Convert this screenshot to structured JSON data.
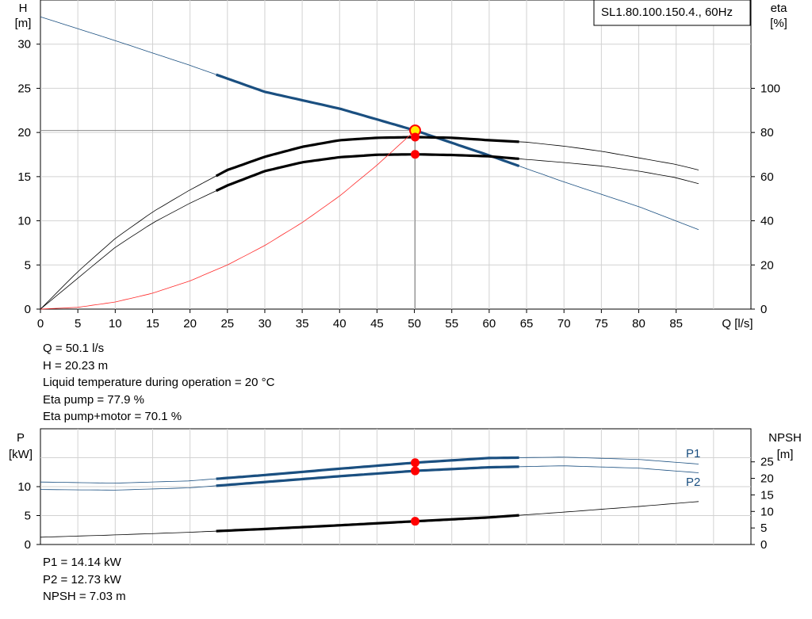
{
  "chart_data": [
    {
      "type": "line",
      "title": "SL1.80.100.150.4., 60Hz",
      "xlabel": "Q [l/s]",
      "ylabel_left": [
        "H",
        "[m]"
      ],
      "ylabel_right": [
        "eta",
        "[%]"
      ],
      "xlim": [
        0,
        95
      ],
      "ylim_left": [
        0,
        35
      ],
      "ylim_right": [
        0,
        140
      ],
      "x_ticks": [
        0,
        5,
        10,
        15,
        20,
        25,
        30,
        35,
        40,
        45,
        50,
        55,
        60,
        65,
        70,
        75,
        80,
        85
      ],
      "y_ticks_left": [
        0,
        5,
        10,
        15,
        20,
        25,
        30
      ],
      "y_ticks_right": [
        0,
        20,
        40,
        60,
        80,
        100
      ],
      "grid": true,
      "colors": {
        "head": "#1a4f80",
        "efficiency": "#000000",
        "system": "#ff2a2a",
        "duty_point": "#ff0000",
        "duty_highlight": "#ffee00"
      },
      "series": [
        {
          "key": "head",
          "axis": "left",
          "style": "thin-and-bold",
          "bold_range": [
            23.5,
            64
          ],
          "x": [
            0,
            10,
            20,
            30,
            40,
            50.1,
            60,
            70,
            80,
            88
          ],
          "y": [
            33.1,
            30.4,
            27.6,
            24.6,
            22.7,
            20.23,
            17.4,
            14.4,
            11.6,
            9.0
          ]
        },
        {
          "key": "eta_pump",
          "axis": "right",
          "style": "thin-and-bold",
          "bold_range": [
            23.5,
            64
          ],
          "x": [
            0,
            5,
            10,
            15,
            20,
            25,
            30,
            35,
            40,
            45,
            50.1,
            55,
            60,
            65,
            70,
            75,
            80,
            85,
            88
          ],
          "y": [
            0,
            17,
            32,
            44,
            54,
            63,
            69,
            73.5,
            76.5,
            77.6,
            77.9,
            77.6,
            76.5,
            75.6,
            73.8,
            71.5,
            68.5,
            65.5,
            63.0
          ]
        },
        {
          "key": "eta_pump_motor",
          "axis": "right",
          "style": "thin-and-bold",
          "bold_range": [
            23.5,
            64
          ],
          "x": [
            0,
            5,
            10,
            15,
            20,
            25,
            30,
            35,
            40,
            45,
            50.1,
            55,
            60,
            65,
            70,
            75,
            80,
            85,
            88
          ],
          "y": [
            0,
            14,
            28,
            39,
            48,
            56,
            62.5,
            66.5,
            68.8,
            69.9,
            70.1,
            69.8,
            69.2,
            67.8,
            66.4,
            64.8,
            62.5,
            59.5,
            56.8
          ]
        },
        {
          "key": "system",
          "axis": "left",
          "style": "thin",
          "x": [
            0,
            5,
            10,
            15,
            20,
            25,
            30,
            35,
            40,
            45,
            50.1
          ],
          "y": [
            0,
            0.2,
            0.8,
            1.8,
            3.2,
            5.0,
            7.2,
            9.8,
            12.8,
            16.3,
            20.23
          ]
        }
      ],
      "duty_point": {
        "q": 50.1,
        "h": 20.23,
        "eta_pump": 77.9,
        "eta_pump_motor": 70.1
      }
    },
    {
      "type": "line",
      "xlim": [
        0,
        95
      ],
      "ylabel_left": [
        "P",
        "[kW]"
      ],
      "ylabel_right": [
        "NPSH",
        "[m]"
      ],
      "ylim_left": [
        0,
        20
      ],
      "ylim_right": [
        0,
        35
      ],
      "y_ticks_left": [
        0,
        5,
        10
      ],
      "y_ticks_right": [
        0,
        5,
        10,
        15,
        20,
        25
      ],
      "grid": true,
      "colors": {
        "power": "#1a4f80",
        "npsh": "#000000",
        "duty_point": "#ff0000"
      },
      "series": [
        {
          "name": "P1",
          "key": "p1",
          "axis": "left",
          "style": "thin-and-bold",
          "bold_range": [
            23.5,
            64
          ],
          "x": [
            0,
            10,
            20,
            30,
            40,
            50.1,
            60,
            70,
            80,
            88
          ],
          "y": [
            10.8,
            10.6,
            11.0,
            12.0,
            13.1,
            14.14,
            14.95,
            15.1,
            14.7,
            13.9
          ]
        },
        {
          "name": "P2",
          "key": "p2",
          "axis": "left",
          "style": "thin-and-bold",
          "bold_range": [
            23.5,
            64
          ],
          "x": [
            0,
            10,
            20,
            30,
            40,
            50.1,
            60,
            70,
            80,
            88
          ],
          "y": [
            9.5,
            9.4,
            9.8,
            10.8,
            11.8,
            12.73,
            13.35,
            13.6,
            13.2,
            12.4
          ]
        },
        {
          "key": "npsh",
          "axis": "right",
          "style": "thin-and-bold",
          "bold_range": [
            23.5,
            64
          ],
          "x": [
            0,
            10,
            20,
            30,
            40,
            50.1,
            60,
            70,
            80,
            88
          ],
          "y": [
            2.2,
            2.9,
            3.7,
            4.7,
            5.8,
            7.03,
            8.2,
            9.8,
            11.5,
            13.0
          ]
        }
      ],
      "duty_point": {
        "q": 50.1,
        "p1": 14.14,
        "p2": 12.73,
        "npsh": 7.03
      }
    }
  ],
  "info_top": [
    "Q = 50.1 l/s",
    "H = 20.23 m",
    "Liquid temperature during operation = 20 °C",
    "Eta pump = 77.9 %",
    "Eta pump+motor = 70.1 %"
  ],
  "info_bottom": [
    "P1 = 14.14 kW",
    "P2 = 12.73 kW",
    "NPSH = 7.03 m"
  ]
}
